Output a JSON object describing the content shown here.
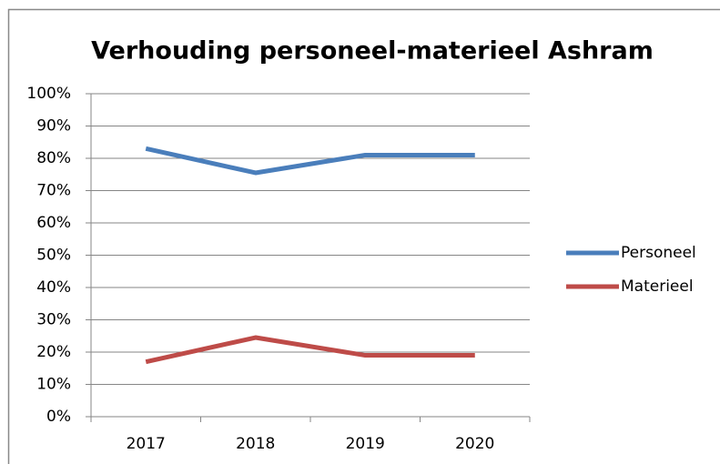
{
  "chart_data": {
    "type": "line",
    "title": "Verhouding personeel-materieel Ashram",
    "categories": [
      "2017",
      "2018",
      "2019",
      "2020"
    ],
    "series": [
      {
        "name": "Personeel",
        "color": "#4a7ebb",
        "values": [
          83,
          75.5,
          81,
          81
        ]
      },
      {
        "name": "Materieel",
        "color": "#be4b48",
        "values": [
          17,
          24.5,
          19,
          19
        ]
      }
    ],
    "ylim": [
      0,
      100
    ],
    "yticks": [
      {
        "value": 0,
        "label": "0%"
      },
      {
        "value": 10,
        "label": "10%"
      },
      {
        "value": 20,
        "label": "20%"
      },
      {
        "value": 30,
        "label": "30%"
      },
      {
        "value": 40,
        "label": "40%"
      },
      {
        "value": 50,
        "label": "50%"
      },
      {
        "value": 60,
        "label": "60%"
      },
      {
        "value": 70,
        "label": "70%"
      },
      {
        "value": 80,
        "label": "80%"
      },
      {
        "value": 90,
        "label": "90%"
      },
      {
        "value": 100,
        "label": "100%"
      }
    ],
    "grid": true,
    "legend": "right"
  }
}
